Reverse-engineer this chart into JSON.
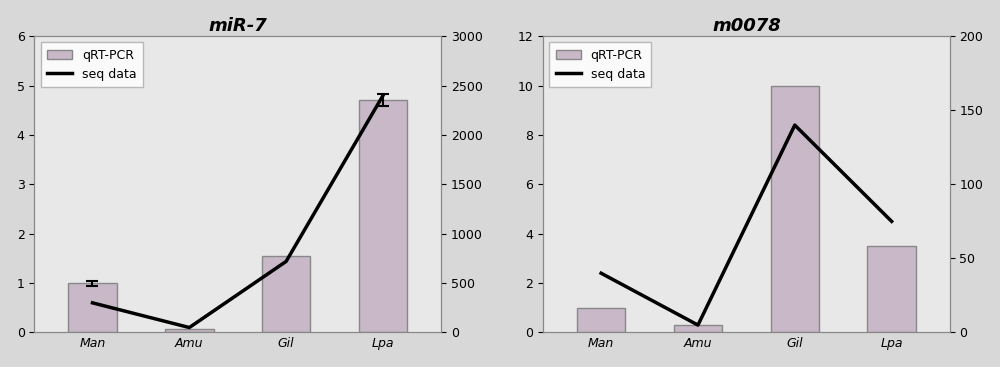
{
  "chart1": {
    "title": "miR-7",
    "categories": [
      "Man",
      "Amu",
      "Gil",
      "Lpa"
    ],
    "bar_values": [
      1.0,
      0.08,
      1.55,
      4.7
    ],
    "bar_error": [
      0.05,
      0.0,
      0.0,
      0.12
    ],
    "line_values": [
      300,
      50,
      720,
      2400
    ],
    "left_ylim": [
      0,
      6
    ],
    "left_yticks": [
      0,
      1,
      2,
      3,
      4,
      5,
      6
    ],
    "right_ylim": [
      0,
      3000
    ],
    "right_yticks": [
      0,
      500,
      1000,
      1500,
      2000,
      2500,
      3000
    ]
  },
  "chart2": {
    "title": "m0078",
    "categories": [
      "Man",
      "Amu",
      "Gil",
      "Lpa"
    ],
    "bar_values": [
      1.0,
      0.3,
      10.0,
      3.5
    ],
    "bar_error": [
      0.0,
      0.0,
      0.0,
      0.0
    ],
    "line_values": [
      40,
      5,
      140,
      75
    ],
    "left_ylim": [
      0,
      12
    ],
    "left_yticks": [
      0,
      2,
      4,
      6,
      8,
      10,
      12
    ],
    "right_ylim": [
      0,
      200
    ],
    "right_yticks": [
      0,
      50,
      100,
      150,
      200
    ]
  },
  "bar_color": "#c8b8c8",
  "bar_edge_color": "#888888",
  "line_color": "black",
  "line_width": 2.5,
  "background_color": "#e8e8e8",
  "fig_background": "#d8d8d8",
  "legend_bar_label": "qRT-PCR",
  "legend_line_label": "seq data",
  "title_fontsize": 13,
  "tick_fontsize": 9,
  "legend_fontsize": 9
}
